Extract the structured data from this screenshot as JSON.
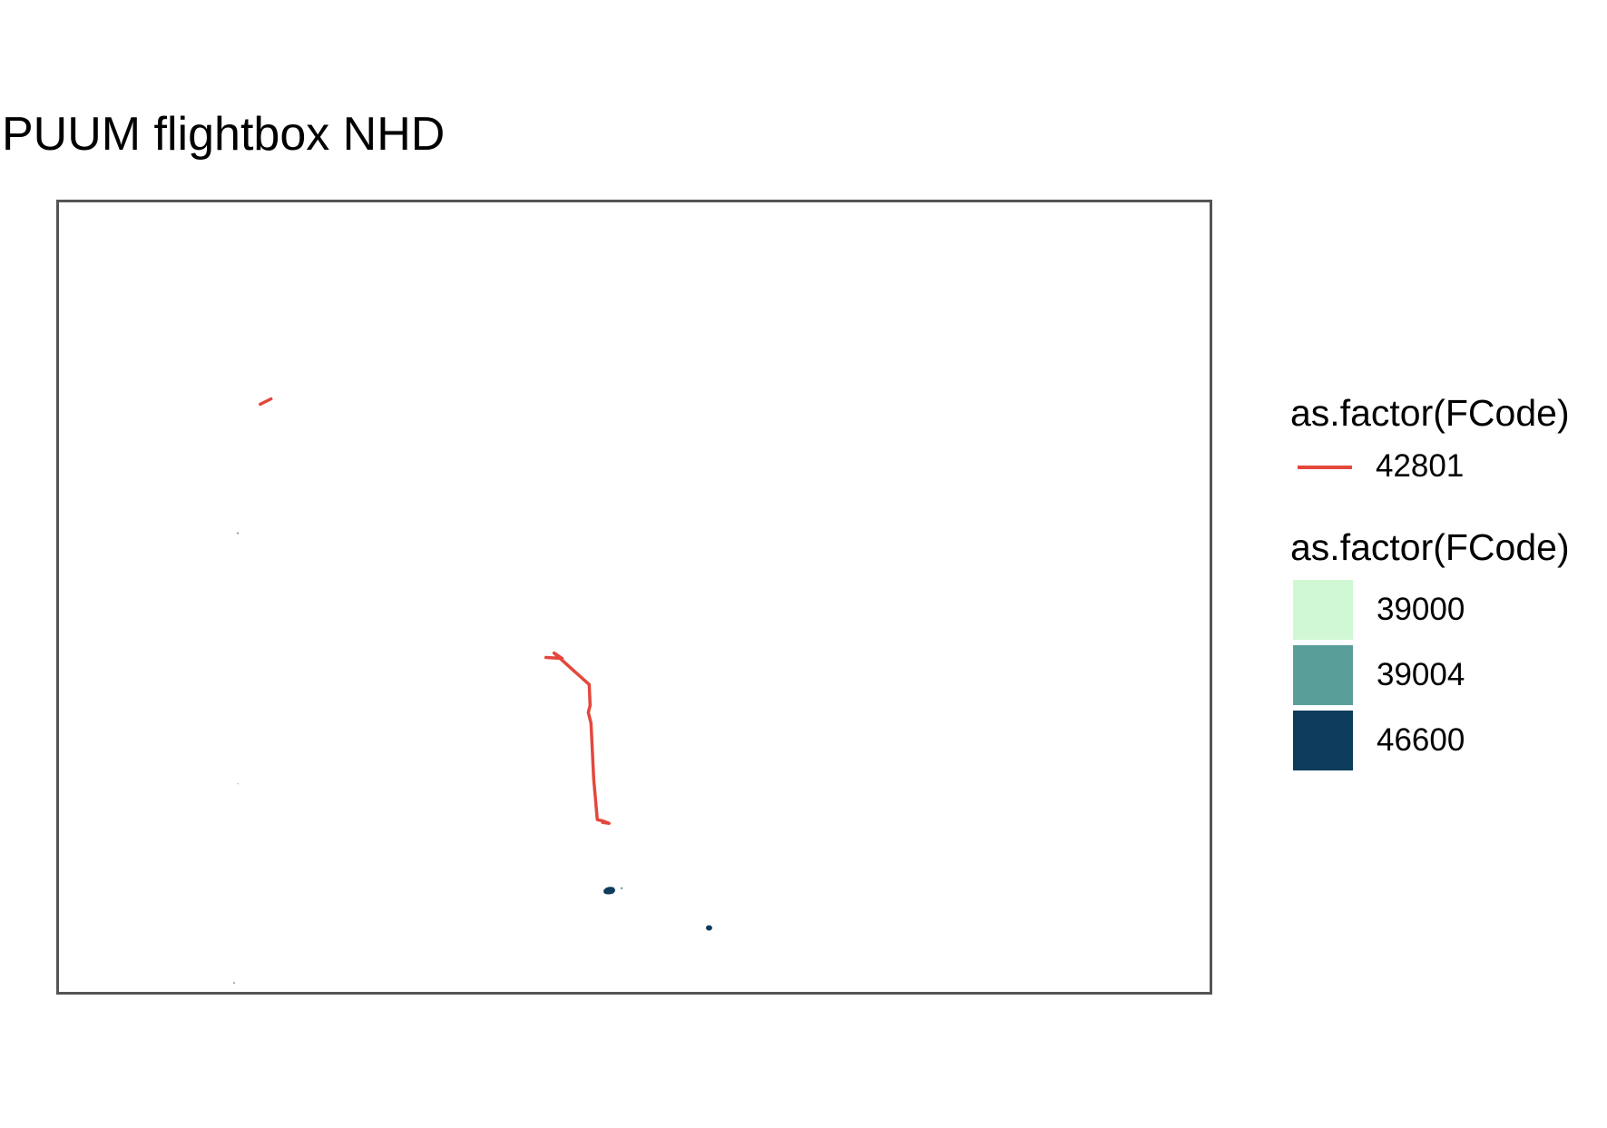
{
  "title": "PUUM flightbox NHD",
  "legend": {
    "line": {
      "title": "as.factor(FCode)",
      "items": [
        {
          "label": "42801",
          "color": "#E4473C"
        }
      ]
    },
    "fill": {
      "title": "as.factor(FCode)",
      "items": [
        {
          "label": "39000",
          "color": "#D0F8D4"
        },
        {
          "label": "39004",
          "color": "#5A9E99"
        },
        {
          "label": "46600",
          "color": "#0E3C5C"
        }
      ]
    }
  }
}
